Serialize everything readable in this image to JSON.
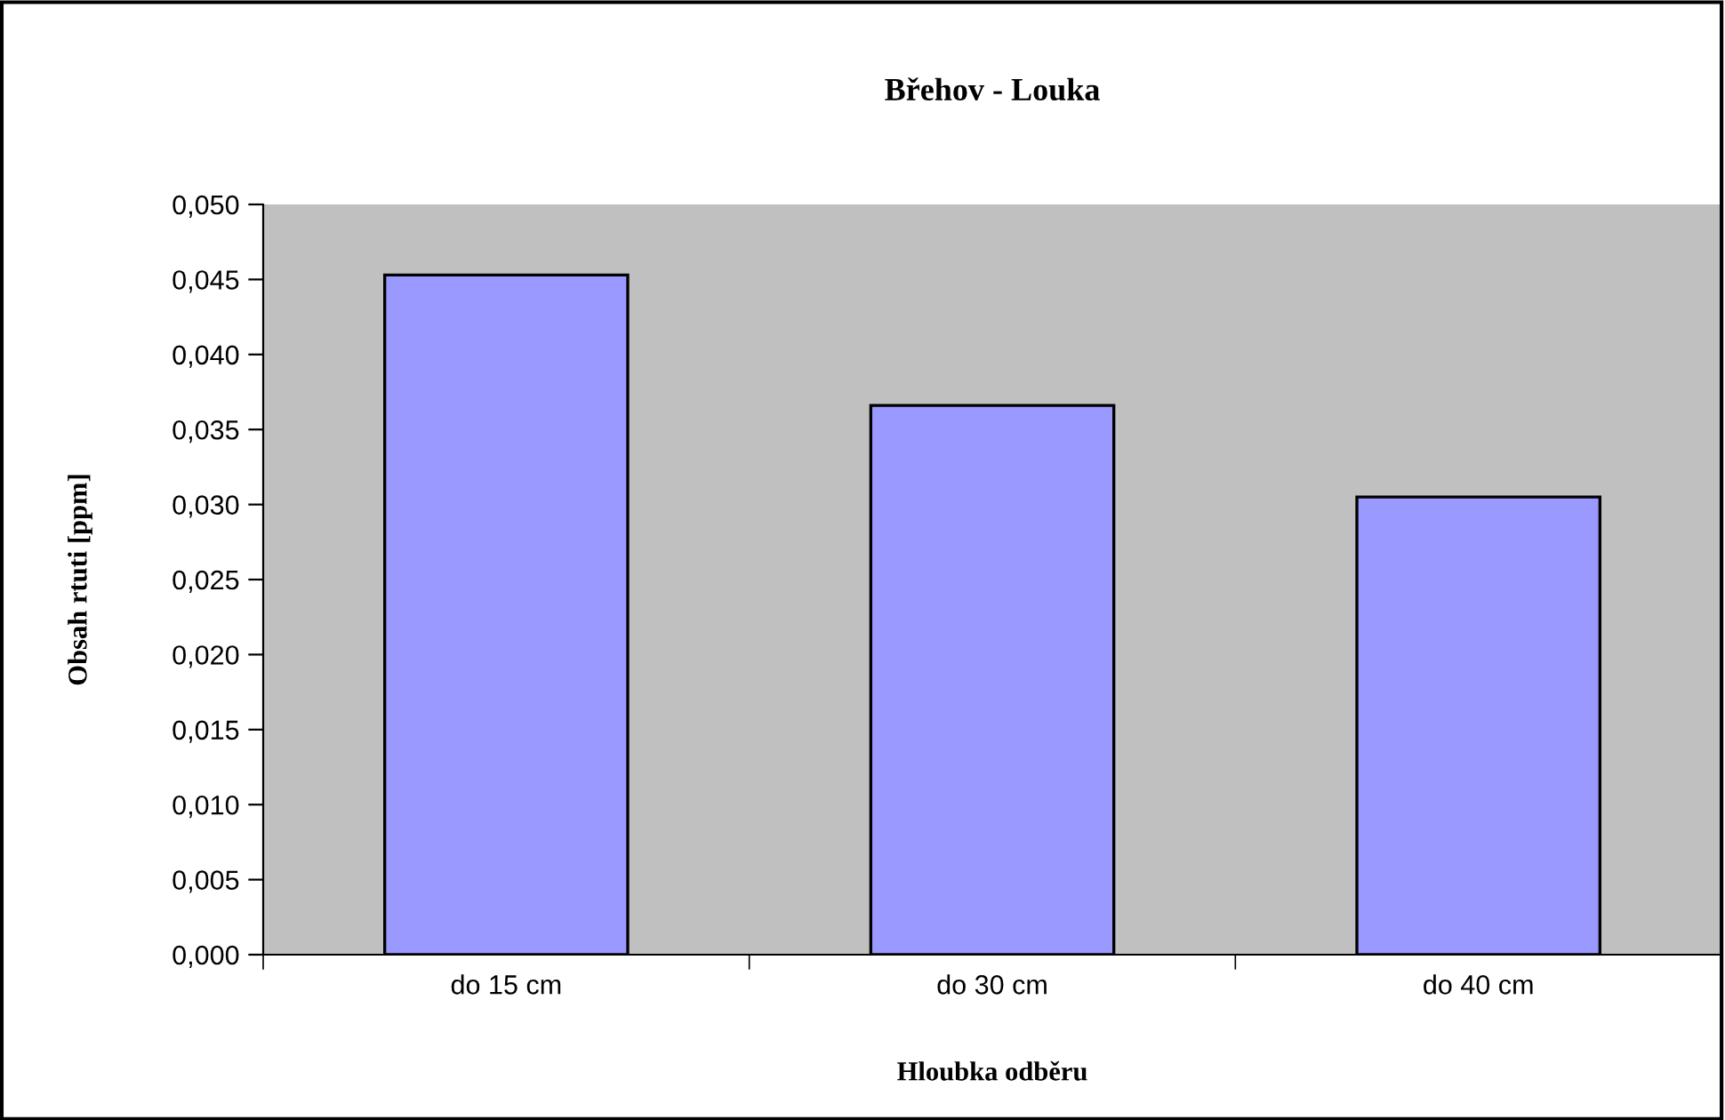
{
  "chart_data": {
    "type": "bar",
    "title": "Břehov - Louka",
    "xlabel": "Hloubka odběru",
    "ylabel": "Obsah rtuti [ppm]",
    "categories": [
      "do 15 cm",
      "do 30 cm",
      "do 40 cm"
    ],
    "series": [
      {
        "color": "#9999ff",
        "values": [
          0.0453,
          0.0366,
          0.0305
        ]
      }
    ],
    "ylim": [
      0,
      0.05
    ],
    "yticks": [
      {
        "value": 0,
        "label": "0,000"
      },
      {
        "value": 0.005,
        "label": "0,005"
      },
      {
        "value": 0.01,
        "label": "0,010"
      },
      {
        "value": 0.015,
        "label": "0,015"
      },
      {
        "value": 0.02,
        "label": "0,020"
      },
      {
        "value": 0.025,
        "label": "0,025"
      },
      {
        "value": 0.03,
        "label": "0,030"
      },
      {
        "value": 0.035,
        "label": "0,035"
      },
      {
        "value": 0.04,
        "label": "0,040"
      },
      {
        "value": 0.045,
        "label": "0,045"
      },
      {
        "value": 0.05,
        "label": "0,050"
      }
    ],
    "grid": false,
    "legend": false
  }
}
